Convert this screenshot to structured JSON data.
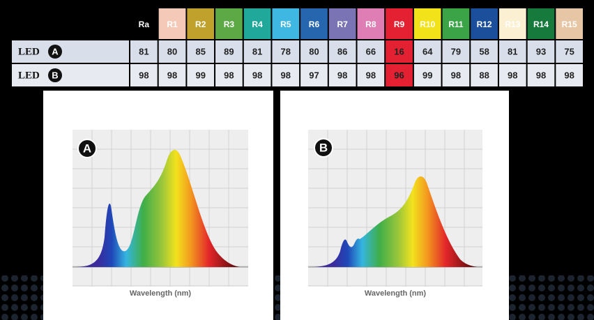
{
  "table": {
    "header": [
      "Ra",
      "R1",
      "R2",
      "R3",
      "R4",
      "R5",
      "R6",
      "R7",
      "R8",
      "R9",
      "R10",
      "R11",
      "R12",
      "R13",
      "R14",
      "R15"
    ],
    "header_colors": [
      "#000000",
      "#f4c9b8",
      "#bfa12c",
      "#5da945",
      "#20a89b",
      "#3fb7e3",
      "#2566ae",
      "#7b74b4",
      "#df7db5",
      "#e42133",
      "#f2e21a",
      "#3aa446",
      "#1c4f9b",
      "#fbf0d2",
      "#157a3b",
      "#e7c6a6"
    ],
    "highlight": {
      "column": "R9",
      "color": "#e42133"
    },
    "rows": [
      {
        "label": "LED",
        "badge": "A",
        "values": [
          81,
          80,
          85,
          89,
          81,
          78,
          80,
          86,
          66,
          16,
          64,
          79,
          58,
          81,
          93,
          75
        ]
      },
      {
        "label": "LED",
        "badge": "B",
        "values": [
          98,
          98,
          99,
          98,
          98,
          98,
          97,
          98,
          98,
          96,
          99,
          98,
          88,
          98,
          98,
          98
        ]
      }
    ]
  },
  "charts": [
    {
      "badge": "A",
      "x_label": "Wavelength (nm)"
    },
    {
      "badge": "B",
      "x_label": "Wavelength (nm)"
    }
  ]
}
